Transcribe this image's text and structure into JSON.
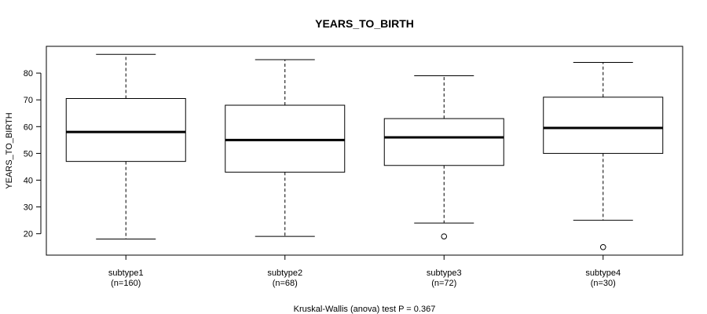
{
  "chart_data": {
    "type": "boxplot",
    "title": "YEARS_TO_BIRTH",
    "ylabel": "YEARS_TO_BIRTH",
    "xlabel": "",
    "ylim": [
      12,
      90
    ],
    "yticks": [
      "20",
      "30",
      "40",
      "50",
      "60",
      "70",
      "80"
    ],
    "footnote": "Kruskal-Wallis (anova) test P = 0.367",
    "grid": false,
    "legend": "none",
    "groups": [
      {
        "label": "subtype1",
        "n_label": "(n=160)",
        "whisker_low": 18,
        "q1": 47,
        "median": 58,
        "q3": 70.5,
        "whisker_high": 87,
        "outliers": []
      },
      {
        "label": "subtype2",
        "n_label": "(n=68)",
        "whisker_low": 19,
        "q1": 43,
        "median": 55,
        "q3": 68,
        "whisker_high": 85,
        "outliers": []
      },
      {
        "label": "subtype3",
        "n_label": "(n=72)",
        "whisker_low": 24,
        "q1": 45.5,
        "median": 56,
        "q3": 63,
        "whisker_high": 79,
        "outliers": [
          19
        ]
      },
      {
        "label": "subtype4",
        "n_label": "(n=30)",
        "whisker_low": 25,
        "q1": 50,
        "median": 59.5,
        "q3": 71,
        "whisker_high": 84,
        "outliers": [
          15
        ]
      }
    ]
  }
}
